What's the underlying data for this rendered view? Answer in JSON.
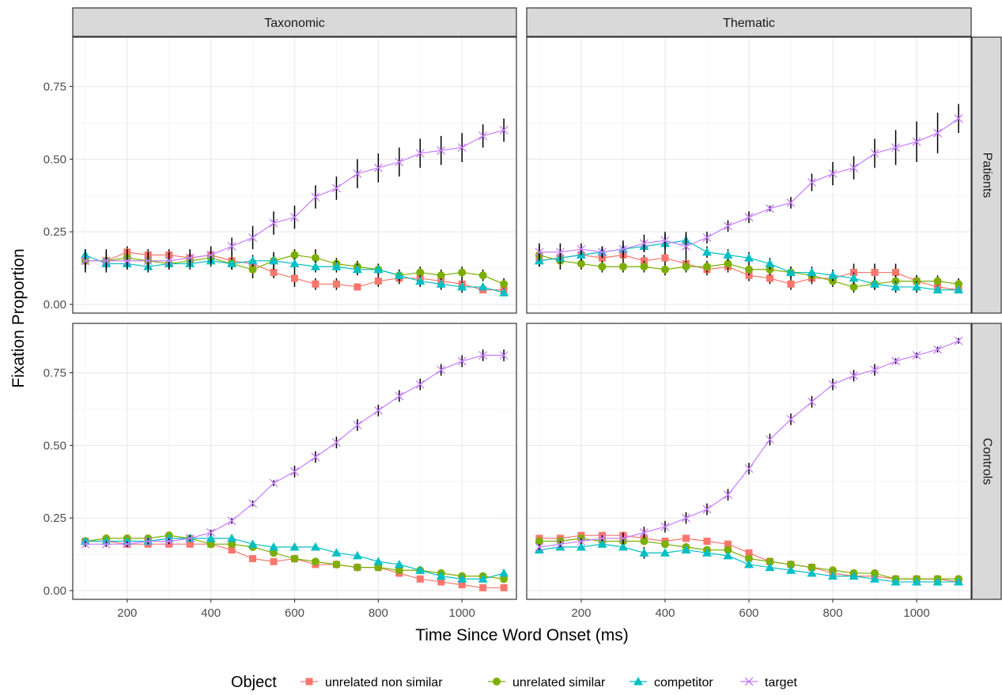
{
  "chart_data": {
    "type": "line",
    "facet_columns": [
      "Taxonomic",
      "Thematic"
    ],
    "facet_rows": [
      "Patients",
      "Controls"
    ],
    "xlabel": "Time Since Word Onset (ms)",
    "ylabel": "Fixation Proportion",
    "xlim": [
      70,
      1130
    ],
    "ylim": [
      -0.03,
      0.92
    ],
    "x_ticks": [
      200,
      400,
      600,
      800,
      1000
    ],
    "y_ticks": [
      0.0,
      0.25,
      0.5,
      0.75
    ],
    "y_tick_labels": [
      "0.00",
      "0.25",
      "0.50",
      "0.75"
    ],
    "grid": true,
    "legend": {
      "title": "Object",
      "position": "bottom",
      "entries": [
        {
          "name": "unrelated non similar",
          "color": "#F8766D",
          "shape": "square"
        },
        {
          "name": "unrelated similar",
          "color": "#7CAE00",
          "shape": "circle"
        },
        {
          "name": "competitor",
          "color": "#00BFC4",
          "shape": "triangle"
        },
        {
          "name": "target",
          "color": "#C77CFF",
          "shape": "cross"
        }
      ]
    },
    "x": [
      100,
      150,
      200,
      250,
      300,
      350,
      400,
      450,
      500,
      550,
      600,
      650,
      700,
      750,
      800,
      850,
      900,
      950,
      1000,
      1050,
      1100
    ],
    "panels": [
      {
        "column": "Taxonomic",
        "row": "Patients",
        "series": [
          {
            "name": "unrelated non similar",
            "values": [
              0.15,
              0.15,
              0.18,
              0.17,
              0.17,
              0.16,
              0.17,
              0.15,
              0.14,
              0.11,
              0.09,
              0.07,
              0.07,
              0.06,
              0.08,
              0.09,
              0.09,
              0.08,
              0.07,
              0.05,
              0.05
            ],
            "err": [
              0.02,
              0.02,
              0.02,
              0.02,
              0.02,
              0.02,
              0.02,
              0.02,
              0.02,
              0.02,
              0.03,
              0.02,
              0.02,
              0.01,
              0.02,
              0.02,
              0.02,
              0.02,
              0.02,
              0.01,
              0.01
            ]
          },
          {
            "name": "unrelated similar",
            "values": [
              0.15,
              0.15,
              0.16,
              0.15,
              0.14,
              0.15,
              0.16,
              0.14,
              0.12,
              0.15,
              0.17,
              0.16,
              0.14,
              0.13,
              0.12,
              0.1,
              0.11,
              0.1,
              0.11,
              0.1,
              0.07
            ],
            "err": [
              0.03,
              0.03,
              0.03,
              0.03,
              0.02,
              0.02,
              0.02,
              0.02,
              0.03,
              0.03,
              0.02,
              0.03,
              0.02,
              0.02,
              0.02,
              0.02,
              0.02,
              0.02,
              0.02,
              0.02,
              0.02
            ]
          },
          {
            "name": "competitor",
            "values": [
              0.17,
              0.14,
              0.14,
              0.13,
              0.14,
              0.14,
              0.15,
              0.14,
              0.15,
              0.15,
              0.14,
              0.13,
              0.13,
              0.12,
              0.12,
              0.1,
              0.08,
              0.07,
              0.06,
              0.06,
              0.04
            ],
            "err": [
              0.02,
              0.02,
              0.02,
              0.02,
              0.02,
              0.02,
              0.02,
              0.02,
              0.02,
              0.02,
              0.02,
              0.02,
              0.02,
              0.02,
              0.02,
              0.02,
              0.02,
              0.02,
              0.02,
              0.01,
              0.01
            ]
          },
          {
            "name": "target",
            "values": [
              0.15,
              0.15,
              0.15,
              0.15,
              0.15,
              0.16,
              0.17,
              0.2,
              0.23,
              0.28,
              0.3,
              0.37,
              0.4,
              0.45,
              0.47,
              0.49,
              0.52,
              0.53,
              0.54,
              0.58,
              0.6
            ],
            "err": [
              0.04,
              0.04,
              0.03,
              0.03,
              0.03,
              0.03,
              0.03,
              0.03,
              0.04,
              0.04,
              0.04,
              0.04,
              0.04,
              0.05,
              0.05,
              0.05,
              0.05,
              0.05,
              0.05,
              0.04,
              0.04
            ]
          }
        ]
      },
      {
        "column": "Thematic",
        "row": "Patients",
        "series": [
          {
            "name": "unrelated non similar",
            "values": [
              0.15,
              0.16,
              0.17,
              0.16,
              0.17,
              0.15,
              0.16,
              0.14,
              0.12,
              0.13,
              0.1,
              0.09,
              0.07,
              0.09,
              0.09,
              0.11,
              0.11,
              0.11,
              0.08,
              0.06,
              0.05
            ],
            "err": [
              0.02,
              0.02,
              0.02,
              0.02,
              0.02,
              0.02,
              0.02,
              0.02,
              0.02,
              0.02,
              0.02,
              0.02,
              0.02,
              0.02,
              0.02,
              0.03,
              0.03,
              0.03,
              0.02,
              0.02,
              0.01
            ]
          },
          {
            "name": "unrelated similar",
            "values": [
              0.17,
              0.15,
              0.14,
              0.13,
              0.13,
              0.13,
              0.12,
              0.13,
              0.13,
              0.14,
              0.12,
              0.12,
              0.11,
              0.1,
              0.08,
              0.06,
              0.07,
              0.08,
              0.08,
              0.08,
              0.07
            ],
            "err": [
              0.03,
              0.03,
              0.02,
              0.02,
              0.02,
              0.02,
              0.02,
              0.02,
              0.02,
              0.02,
              0.02,
              0.02,
              0.02,
              0.02,
              0.02,
              0.02,
              0.02,
              0.02,
              0.02,
              0.02,
              0.02
            ]
          },
          {
            "name": "competitor",
            "values": [
              0.15,
              0.16,
              0.17,
              0.18,
              0.19,
              0.2,
              0.21,
              0.22,
              0.18,
              0.17,
              0.16,
              0.14,
              0.11,
              0.11,
              0.1,
              0.09,
              0.07,
              0.06,
              0.06,
              0.05,
              0.05
            ],
            "err": [
              0.02,
              0.02,
              0.02,
              0.02,
              0.02,
              0.02,
              0.03,
              0.03,
              0.02,
              0.02,
              0.02,
              0.02,
              0.02,
              0.02,
              0.02,
              0.02,
              0.02,
              0.02,
              0.02,
              0.01,
              0.01
            ]
          },
          {
            "name": "target",
            "values": [
              0.18,
              0.18,
              0.19,
              0.18,
              0.19,
              0.21,
              0.22,
              0.2,
              0.23,
              0.27,
              0.3,
              0.33,
              0.35,
              0.42,
              0.45,
              0.47,
              0.52,
              0.54,
              0.56,
              0.59,
              0.64
            ],
            "err": [
              0.03,
              0.03,
              0.02,
              0.02,
              0.03,
              0.03,
              0.03,
              0.04,
              0.02,
              0.02,
              0.02,
              0.01,
              0.02,
              0.03,
              0.04,
              0.04,
              0.05,
              0.06,
              0.07,
              0.07,
              0.05
            ]
          }
        ]
      },
      {
        "column": "Taxonomic",
        "row": "Controls",
        "series": [
          {
            "name": "unrelated non similar",
            "values": [
              0.17,
              0.17,
              0.16,
              0.16,
              0.16,
              0.16,
              0.16,
              0.14,
              0.11,
              0.1,
              0.11,
              0.09,
              0.09,
              0.08,
              0.08,
              0.06,
              0.04,
              0.03,
              0.02,
              0.01,
              0.01
            ],
            "err": [
              0.01,
              0.01,
              0.01,
              0.01,
              0.01,
              0.01,
              0.01,
              0.01,
              0.01,
              0.01,
              0.01,
              0.01,
              0.01,
              0.01,
              0.01,
              0.01,
              0.01,
              0.01,
              0.01,
              0.01,
              0.01
            ]
          },
          {
            "name": "unrelated similar",
            "values": [
              0.17,
              0.18,
              0.18,
              0.18,
              0.19,
              0.18,
              0.16,
              0.16,
              0.15,
              0.13,
              0.11,
              0.1,
              0.09,
              0.08,
              0.08,
              0.07,
              0.07,
              0.06,
              0.05,
              0.05,
              0.04
            ],
            "err": [
              0.01,
              0.01,
              0.01,
              0.01,
              0.01,
              0.01,
              0.01,
              0.01,
              0.01,
              0.01,
              0.01,
              0.01,
              0.01,
              0.01,
              0.01,
              0.01,
              0.01,
              0.01,
              0.01,
              0.01,
              0.01
            ]
          },
          {
            "name": "competitor",
            "values": [
              0.17,
              0.17,
              0.17,
              0.17,
              0.18,
              0.18,
              0.18,
              0.18,
              0.16,
              0.15,
              0.15,
              0.15,
              0.13,
              0.12,
              0.1,
              0.09,
              0.07,
              0.05,
              0.04,
              0.04,
              0.06
            ],
            "err": [
              0.01,
              0.01,
              0.01,
              0.01,
              0.01,
              0.01,
              0.01,
              0.01,
              0.01,
              0.01,
              0.01,
              0.01,
              0.01,
              0.01,
              0.01,
              0.01,
              0.01,
              0.01,
              0.01,
              0.01,
              0.01
            ]
          },
          {
            "name": "target",
            "values": [
              0.16,
              0.16,
              0.16,
              0.17,
              0.17,
              0.18,
              0.2,
              0.24,
              0.3,
              0.37,
              0.41,
              0.46,
              0.51,
              0.57,
              0.62,
              0.67,
              0.71,
              0.76,
              0.79,
              0.81,
              0.81
            ],
            "err": [
              0.01,
              0.01,
              0.01,
              0.01,
              0.01,
              0.01,
              0.01,
              0.01,
              0.01,
              0.01,
              0.02,
              0.02,
              0.02,
              0.02,
              0.02,
              0.02,
              0.02,
              0.02,
              0.02,
              0.02,
              0.02
            ]
          }
        ]
      },
      {
        "column": "Thematic",
        "row": "Controls",
        "series": [
          {
            "name": "unrelated non similar",
            "values": [
              0.18,
              0.18,
              0.19,
              0.19,
              0.19,
              0.18,
              0.17,
              0.18,
              0.17,
              0.16,
              0.13,
              0.1,
              0.09,
              0.08,
              0.06,
              0.05,
              0.05,
              0.04,
              0.04,
              0.04,
              0.03
            ],
            "err": [
              0.01,
              0.01,
              0.01,
              0.01,
              0.01,
              0.01,
              0.01,
              0.01,
              0.01,
              0.01,
              0.01,
              0.01,
              0.01,
              0.01,
              0.01,
              0.01,
              0.01,
              0.01,
              0.01,
              0.01,
              0.01
            ]
          },
          {
            "name": "unrelated similar",
            "values": [
              0.17,
              0.17,
              0.18,
              0.17,
              0.17,
              0.17,
              0.16,
              0.15,
              0.14,
              0.14,
              0.11,
              0.1,
              0.09,
              0.08,
              0.07,
              0.06,
              0.06,
              0.04,
              0.04,
              0.04,
              0.04
            ],
            "err": [
              0.01,
              0.01,
              0.01,
              0.01,
              0.01,
              0.01,
              0.01,
              0.01,
              0.01,
              0.01,
              0.01,
              0.01,
              0.01,
              0.01,
              0.01,
              0.01,
              0.01,
              0.01,
              0.01,
              0.01,
              0.01
            ]
          },
          {
            "name": "competitor",
            "values": [
              0.14,
              0.15,
              0.15,
              0.16,
              0.15,
              0.13,
              0.13,
              0.14,
              0.13,
              0.12,
              0.09,
              0.08,
              0.07,
              0.06,
              0.05,
              0.05,
              0.04,
              0.03,
              0.03,
              0.03,
              0.03
            ],
            "err": [
              0.01,
              0.01,
              0.01,
              0.01,
              0.01,
              0.02,
              0.01,
              0.01,
              0.01,
              0.01,
              0.01,
              0.01,
              0.01,
              0.01,
              0.01,
              0.01,
              0.01,
              0.01,
              0.01,
              0.01,
              0.01
            ]
          },
          {
            "name": "target",
            "values": [
              0.15,
              0.16,
              0.17,
              0.18,
              0.18,
              0.2,
              0.22,
              0.25,
              0.28,
              0.33,
              0.42,
              0.52,
              0.59,
              0.65,
              0.71,
              0.74,
              0.76,
              0.79,
              0.81,
              0.83,
              0.86
            ],
            "err": [
              0.01,
              0.01,
              0.01,
              0.01,
              0.02,
              0.02,
              0.02,
              0.02,
              0.02,
              0.02,
              0.02,
              0.02,
              0.02,
              0.02,
              0.02,
              0.02,
              0.02,
              0.01,
              0.01,
              0.01,
              0.01
            ]
          }
        ]
      }
    ]
  }
}
